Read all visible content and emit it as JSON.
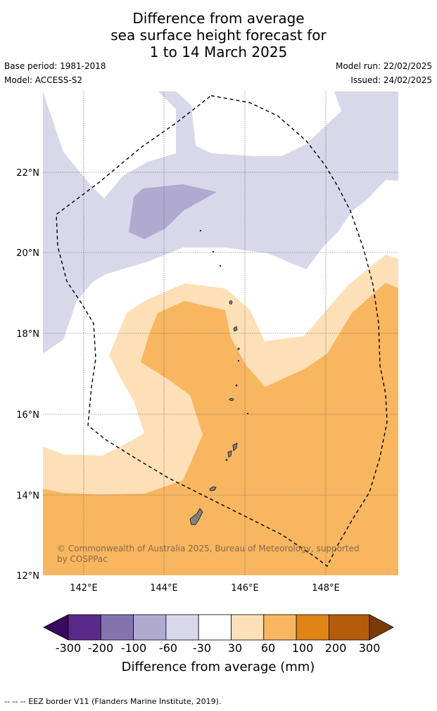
{
  "title": {
    "line1": "Difference from average",
    "line2": "sea surface height forecast for",
    "line3": "1 to 14 March 2025"
  },
  "meta": {
    "base_period": "Base period: 1981-2018",
    "model": "Model: ACCESS-S2",
    "model_run": "Model run: 22/02/2025",
    "issued": "Issued: 24/02/2025"
  },
  "map": {
    "lon_labels": [
      "142°E",
      "144°E",
      "146°E",
      "148°E"
    ],
    "lat_labels": [
      "22°N",
      "20°N",
      "18°N",
      "16°N",
      "14°N",
      "12°N"
    ],
    "copyright_line1": "© Commonwealth of Australia 2025, Bureau of Meteorology, supported",
    "copyright_line2": "by COSPPac"
  },
  "colorbar": {
    "ticks": [
      "-300",
      "-200",
      "-100",
      "-60",
      "-30",
      "30",
      "60",
      "100",
      "200",
      "300"
    ],
    "colors": [
      "#3a0a5e",
      "#5a2a8a",
      "#8474ae",
      "#b0a9d0",
      "#d8d8ea",
      "#ffffff",
      "#fde0b8",
      "#f8b660",
      "#e08416",
      "#b45c0c",
      "#7c3a08"
    ],
    "label": "Difference from average (mm)"
  },
  "legend": {
    "eez_symbol": "--  --  --",
    "eez_text": "EEZ border V11 (Flanders Marine Institute, 2019)."
  }
}
